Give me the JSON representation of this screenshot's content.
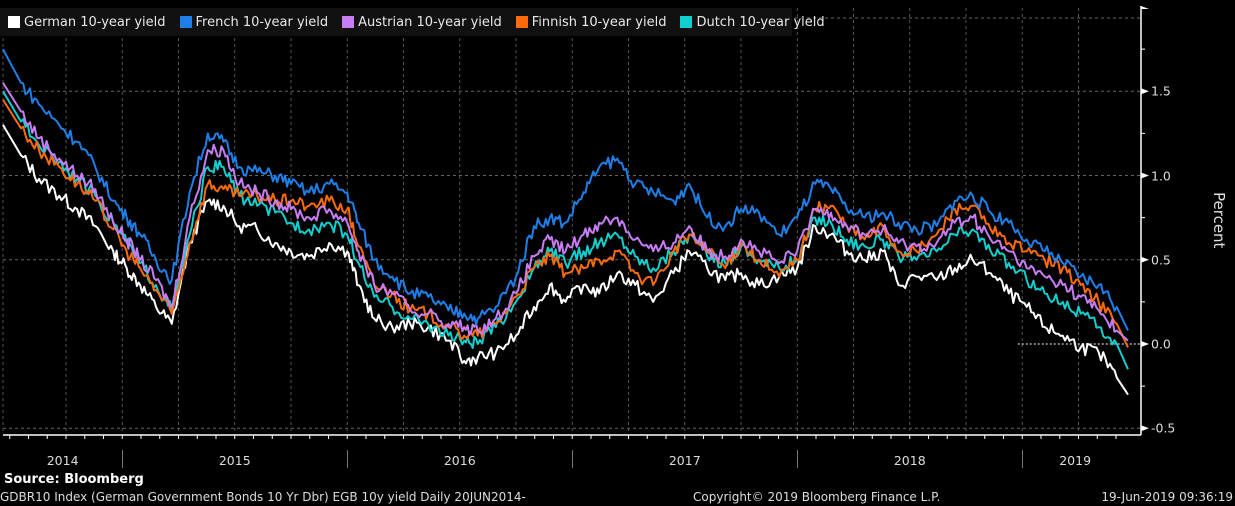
{
  "chart_data": {
    "type": "line",
    "title": "",
    "xlabel": "",
    "ylabel": "Percent",
    "x_unit": "decimal year",
    "xlim": [
      2014.47,
      2019.47
    ],
    "ylim": [
      -0.55,
      1.95
    ],
    "y_ticks": [
      -0.5,
      0.0,
      0.5,
      1.0,
      1.5
    ],
    "y_tick_labels": [
      "-0.5",
      "0.0",
      "0.5",
      "1.0",
      "1.5"
    ],
    "x_tick_labels": [
      "2014",
      "2015",
      "2016",
      "2017",
      "2018",
      "2019"
    ],
    "year_boundaries": [
      2015,
      2016,
      2017,
      2018,
      2019
    ],
    "grid": true,
    "legend_position": "top-left",
    "zero_line": true,
    "x": [
      2014.47,
      2014.55,
      2014.63,
      2014.72,
      2014.8,
      2014.88,
      2014.96,
      2015.02,
      2015.08,
      2015.15,
      2015.22,
      2015.3,
      2015.38,
      2015.45,
      2015.52,
      2015.6,
      2015.68,
      2015.75,
      2015.83,
      2015.92,
      2016.0,
      2016.05,
      2016.12,
      2016.2,
      2016.28,
      2016.36,
      2016.45,
      2016.52,
      2016.58,
      2016.66,
      2016.75,
      2016.83,
      2016.9,
      2016.97,
      2017.05,
      2017.12,
      2017.2,
      2017.28,
      2017.36,
      2017.45,
      2017.52,
      2017.6,
      2017.68,
      2017.75,
      2017.83,
      2017.92,
      2018.0,
      2018.08,
      2018.15,
      2018.22,
      2018.3,
      2018.38,
      2018.45,
      2018.53,
      2018.62,
      2018.7,
      2018.78,
      2018.86,
      2018.94,
      2019.02,
      2019.1,
      2019.18,
      2019.26,
      2019.34,
      2019.42,
      2019.47
    ],
    "series": [
      {
        "name": "German 10-year yield",
        "color": "#ffffff",
        "values": [
          1.3,
          1.12,
          0.98,
          0.88,
          0.8,
          0.7,
          0.55,
          0.45,
          0.35,
          0.22,
          0.12,
          0.6,
          0.85,
          0.82,
          0.7,
          0.68,
          0.6,
          0.55,
          0.52,
          0.6,
          0.55,
          0.35,
          0.15,
          0.1,
          0.12,
          0.1,
          0.02,
          -0.1,
          -0.08,
          -0.05,
          0.05,
          0.22,
          0.35,
          0.25,
          0.35,
          0.3,
          0.42,
          0.35,
          0.25,
          0.42,
          0.55,
          0.45,
          0.38,
          0.42,
          0.35,
          0.4,
          0.45,
          0.7,
          0.65,
          0.55,
          0.5,
          0.55,
          0.35,
          0.4,
          0.38,
          0.45,
          0.5,
          0.42,
          0.3,
          0.22,
          0.1,
          0.05,
          -0.02,
          -0.05,
          -0.2,
          -0.3
        ]
      },
      {
        "name": "French 10-year yield",
        "color": "#1f7fe8",
        "values": [
          1.75,
          1.55,
          1.42,
          1.3,
          1.2,
          1.05,
          0.85,
          0.75,
          0.65,
          0.5,
          0.38,
          0.9,
          1.25,
          1.2,
          1.05,
          1.02,
          1.0,
          0.95,
          0.9,
          0.95,
          0.9,
          0.72,
          0.5,
          0.4,
          0.3,
          0.28,
          0.2,
          0.18,
          0.15,
          0.22,
          0.4,
          0.7,
          0.75,
          0.72,
          0.9,
          1.05,
          1.1,
          0.95,
          0.9,
          0.85,
          0.95,
          0.75,
          0.7,
          0.8,
          0.78,
          0.65,
          0.75,
          0.95,
          0.92,
          0.8,
          0.75,
          0.78,
          0.72,
          0.68,
          0.7,
          0.85,
          0.88,
          0.78,
          0.72,
          0.62,
          0.55,
          0.48,
          0.4,
          0.35,
          0.22,
          0.08
        ]
      },
      {
        "name": "Austrian 10-year yield",
        "color": "#c77df3",
        "values": [
          1.55,
          1.38,
          1.22,
          1.1,
          1.0,
          0.92,
          0.72,
          0.62,
          0.5,
          0.38,
          0.22,
          0.75,
          1.15,
          1.15,
          0.95,
          0.9,
          0.85,
          0.8,
          0.75,
          0.8,
          0.72,
          0.55,
          0.35,
          0.3,
          0.2,
          0.18,
          0.12,
          0.1,
          0.08,
          0.15,
          0.3,
          0.52,
          0.62,
          0.55,
          0.65,
          0.72,
          0.75,
          0.62,
          0.55,
          0.6,
          0.7,
          0.55,
          0.52,
          0.62,
          0.55,
          0.48,
          0.55,
          0.8,
          0.78,
          0.7,
          0.65,
          0.68,
          0.6,
          0.58,
          0.6,
          0.72,
          0.75,
          0.62,
          0.55,
          0.45,
          0.4,
          0.35,
          0.28,
          0.2,
          0.08,
          0.02
        ]
      },
      {
        "name": "Finnish 10-year yield",
        "color": "#fb6b0c",
        "values": [
          1.45,
          1.28,
          1.15,
          1.05,
          0.95,
          0.85,
          0.68,
          0.55,
          0.45,
          0.32,
          0.18,
          0.6,
          0.95,
          0.92,
          0.88,
          0.88,
          0.85,
          0.85,
          0.82,
          0.85,
          0.8,
          0.58,
          0.35,
          0.3,
          0.2,
          0.18,
          0.1,
          0.05,
          0.05,
          0.12,
          0.28,
          0.45,
          0.52,
          0.42,
          0.45,
          0.5,
          0.55,
          0.42,
          0.35,
          0.55,
          0.65,
          0.55,
          0.45,
          0.6,
          0.5,
          0.4,
          0.5,
          0.8,
          0.82,
          0.7,
          0.62,
          0.7,
          0.55,
          0.55,
          0.65,
          0.8,
          0.82,
          0.68,
          0.6,
          0.55,
          0.5,
          0.45,
          0.35,
          0.25,
          0.12,
          -0.02
        ]
      },
      {
        "name": "Dutch 10-year yield",
        "color": "#0fcfcf",
        "values": [
          1.5,
          1.32,
          1.18,
          1.08,
          0.98,
          0.88,
          0.72,
          0.6,
          0.48,
          0.35,
          0.2,
          0.65,
          1.05,
          1.05,
          0.88,
          0.82,
          0.78,
          0.72,
          0.68,
          0.72,
          0.65,
          0.48,
          0.28,
          0.22,
          0.15,
          0.12,
          0.05,
          0.02,
          0.0,
          0.1,
          0.25,
          0.45,
          0.55,
          0.48,
          0.55,
          0.6,
          0.65,
          0.52,
          0.45,
          0.55,
          0.65,
          0.52,
          0.48,
          0.58,
          0.5,
          0.45,
          0.5,
          0.75,
          0.72,
          0.62,
          0.58,
          0.62,
          0.52,
          0.5,
          0.55,
          0.65,
          0.68,
          0.55,
          0.48,
          0.38,
          0.3,
          0.25,
          0.18,
          0.1,
          0.0,
          -0.15
        ]
      }
    ]
  },
  "legend": {
    "items": [
      {
        "label": "German 10-year yield",
        "color": "#ffffff"
      },
      {
        "label": "French 10-year yield",
        "color": "#1f7fe8"
      },
      {
        "label": "Austrian 10-year yield",
        "color": "#c77df3"
      },
      {
        "label": "Finnish 10-year yield",
        "color": "#fb6b0c"
      },
      {
        "label": "Dutch 10-year yield",
        "color": "#0fcfcf"
      }
    ]
  },
  "footer": {
    "source": "Source:  Bloomberg",
    "description": "GDBR10 Index (German Government Bonds 10 Yr Dbr) EGB 10y yield  Daily 20JUN2014-",
    "copyright": "Copyright© 2019 Bloomberg Finance L.P.",
    "timestamp": "19-Jun-2019 09:36:19"
  }
}
